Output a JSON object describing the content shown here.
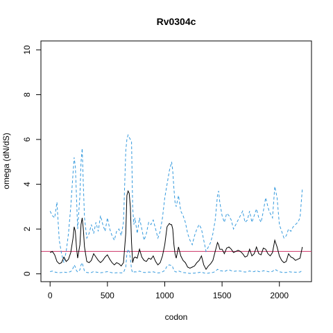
{
  "chart_data": {
    "type": "line",
    "title": "Rv0304c",
    "xlabel": "codon",
    "ylabel": "omega (dN/dS)",
    "xlim": [
      -80,
      2280
    ],
    "ylim": [
      -0.35,
      10.4
    ],
    "x_ticks": [
      0,
      500,
      1000,
      1500,
      2000
    ],
    "x_tick_labels": [
      "0",
      "500",
      "1000",
      "1500",
      "2000"
    ],
    "y_ticks": [
      0,
      2,
      4,
      6,
      8,
      10
    ],
    "y_tick_labels": [
      "0",
      "2",
      "4",
      "6",
      "8",
      "10"
    ],
    "grid": false,
    "reference_line": {
      "y": 1,
      "color": "#cc3366"
    },
    "series": [
      {
        "id": "upper",
        "color": "#3399dd",
        "dash": true,
        "x": [
          0,
          20,
          40,
          60,
          80,
          100,
          120,
          140,
          160,
          180,
          200,
          210,
          220,
          230,
          240,
          260,
          270,
          280,
          290,
          300,
          320,
          340,
          360,
          380,
          400,
          420,
          440,
          460,
          480,
          500,
          520,
          540,
          560,
          580,
          600,
          620,
          640,
          660,
          670,
          680,
          690,
          700,
          710,
          720,
          730,
          740,
          760,
          780,
          800,
          820,
          840,
          860,
          880,
          900,
          920,
          940,
          960,
          980,
          1000,
          1020,
          1040,
          1050,
          1060,
          1070,
          1080,
          1090,
          1100,
          1120,
          1140,
          1160,
          1180,
          1200,
          1220,
          1240,
          1260,
          1280,
          1300,
          1320,
          1340,
          1360,
          1380,
          1400,
          1420,
          1440,
          1460,
          1470,
          1480,
          1500,
          1520,
          1540,
          1560,
          1580,
          1600,
          1620,
          1640,
          1660,
          1680,
          1700,
          1720,
          1740,
          1760,
          1780,
          1800,
          1820,
          1840,
          1860,
          1880,
          1900,
          1910,
          1920,
          1940,
          1960,
          1980,
          2000,
          2020,
          2040,
          2060,
          2080,
          2100,
          2120,
          2140,
          2160,
          2180,
          2200
        ],
        "y": [
          2.8,
          2.6,
          2.5,
          3.2,
          1.5,
          0.9,
          0.5,
          1.0,
          1.8,
          3.0,
          4.5,
          5.2,
          4.8,
          3.5,
          2.0,
          3.5,
          5.0,
          5.6,
          4.0,
          2.5,
          1.6,
          1.8,
          2.2,
          1.8,
          2.3,
          1.9,
          2.6,
          2.2,
          1.9,
          2.5,
          2.0,
          1.7,
          1.5,
          1.9,
          2.0,
          1.7,
          2.3,
          5.5,
          6.0,
          6.2,
          6.1,
          6.0,
          5.9,
          3.0,
          2.2,
          2.5,
          1.8,
          2.5,
          2.0,
          1.5,
          1.8,
          2.3,
          2.2,
          2.4,
          2.0,
          1.6,
          1.9,
          2.5,
          3.4,
          4.0,
          4.6,
          4.8,
          5.0,
          4.6,
          3.8,
          3.2,
          3.0,
          3.5,
          2.8,
          2.6,
          2.3,
          1.8,
          1.5,
          1.3,
          1.7,
          2.0,
          2.2,
          2.0,
          1.5,
          1.0,
          1.2,
          1.4,
          1.8,
          2.4,
          3.5,
          3.7,
          3.2,
          2.6,
          2.3,
          2.7,
          2.6,
          2.4,
          2.0,
          2.2,
          2.4,
          2.6,
          2.8,
          2.3,
          2.4,
          2.8,
          2.3,
          2.6,
          2.9,
          2.5,
          2.3,
          2.8,
          3.4,
          3.0,
          2.8,
          2.7,
          2.5,
          3.9,
          3.4,
          2.2,
          1.9,
          1.6,
          1.7,
          2.0,
          1.9,
          2.1,
          2.2,
          2.3,
          2.5,
          3.8
        ]
      },
      {
        "id": "omega",
        "color": "#000000",
        "dash": false,
        "x": [
          0,
          20,
          40,
          60,
          80,
          100,
          120,
          140,
          160,
          180,
          200,
          210,
          220,
          230,
          240,
          260,
          270,
          280,
          290,
          300,
          320,
          340,
          360,
          380,
          400,
          420,
          440,
          460,
          480,
          500,
          520,
          540,
          560,
          580,
          600,
          620,
          640,
          660,
          670,
          680,
          690,
          700,
          710,
          720,
          730,
          740,
          760,
          780,
          800,
          820,
          840,
          860,
          880,
          900,
          920,
          940,
          960,
          980,
          1000,
          1020,
          1040,
          1050,
          1060,
          1070,
          1080,
          1090,
          1100,
          1120,
          1140,
          1160,
          1180,
          1200,
          1220,
          1240,
          1260,
          1280,
          1300,
          1320,
          1340,
          1360,
          1380,
          1400,
          1420,
          1440,
          1460,
          1470,
          1480,
          1500,
          1520,
          1540,
          1560,
          1580,
          1600,
          1620,
          1640,
          1660,
          1680,
          1700,
          1720,
          1740,
          1760,
          1780,
          1800,
          1820,
          1840,
          1860,
          1880,
          1900,
          1910,
          1920,
          1940,
          1960,
          1980,
          2000,
          2020,
          2040,
          2060,
          2080,
          2100,
          2120,
          2140,
          2160,
          2180,
          2200
        ],
        "y": [
          0.95,
          1.0,
          0.85,
          0.55,
          0.45,
          0.5,
          0.75,
          0.55,
          0.65,
          0.95,
          1.6,
          2.1,
          1.9,
          1.2,
          0.7,
          1.3,
          2.2,
          2.5,
          2.0,
          1.2,
          0.55,
          0.5,
          0.6,
          0.9,
          0.75,
          0.6,
          0.5,
          0.6,
          0.75,
          0.85,
          0.65,
          0.5,
          0.4,
          0.5,
          0.45,
          0.35,
          0.5,
          1.8,
          3.5,
          3.7,
          3.6,
          3.0,
          1.4,
          0.5,
          0.7,
          0.75,
          0.7,
          1.1,
          0.75,
          0.6,
          0.55,
          0.7,
          0.65,
          0.8,
          0.55,
          0.4,
          0.5,
          0.8,
          1.3,
          2.1,
          2.25,
          2.2,
          2.2,
          2.0,
          1.3,
          0.9,
          0.7,
          1.2,
          0.8,
          0.6,
          0.5,
          0.3,
          0.25,
          0.3,
          0.35,
          0.5,
          0.6,
          0.8,
          0.4,
          0.2,
          0.35,
          0.45,
          0.6,
          1.0,
          1.4,
          1.3,
          1.1,
          1.1,
          0.9,
          1.15,
          1.2,
          1.1,
          0.95,
          1.0,
          1.05,
          1.0,
          0.9,
          0.75,
          0.8,
          1.1,
          0.8,
          0.9,
          1.2,
          0.9,
          0.85,
          1.15,
          1.1,
          0.9,
          0.85,
          0.8,
          0.95,
          1.5,
          1.2,
          0.8,
          0.6,
          0.5,
          0.55,
          0.9,
          0.75,
          0.7,
          0.6,
          0.65,
          0.7,
          1.2
        ]
      },
      {
        "id": "lower",
        "color": "#3399dd",
        "dash": true,
        "x": [
          0,
          20,
          40,
          60,
          80,
          100,
          120,
          140,
          160,
          180,
          200,
          210,
          220,
          230,
          240,
          260,
          270,
          280,
          290,
          300,
          320,
          340,
          360,
          380,
          400,
          420,
          440,
          460,
          480,
          500,
          520,
          540,
          560,
          580,
          600,
          620,
          640,
          660,
          670,
          680,
          690,
          700,
          710,
          720,
          730,
          740,
          760,
          780,
          800,
          820,
          840,
          860,
          880,
          900,
          920,
          940,
          960,
          980,
          1000,
          1020,
          1040,
          1050,
          1060,
          1070,
          1080,
          1090,
          1100,
          1120,
          1140,
          1160,
          1180,
          1200,
          1220,
          1240,
          1260,
          1280,
          1300,
          1320,
          1340,
          1360,
          1380,
          1400,
          1420,
          1440,
          1460,
          1470,
          1480,
          1500,
          1520,
          1540,
          1560,
          1580,
          1600,
          1620,
          1640,
          1660,
          1680,
          1700,
          1720,
          1740,
          1760,
          1780,
          1800,
          1820,
          1840,
          1860,
          1880,
          1900,
          1910,
          1920,
          1940,
          1960,
          1980,
          2000,
          2020,
          2040,
          2060,
          2080,
          2100,
          2120,
          2140,
          2160,
          2180,
          2200
        ],
        "y": [
          0.1,
          0.12,
          0.08,
          0.06,
          0.05,
          0.06,
          0.08,
          0.06,
          0.07,
          0.1,
          0.25,
          0.4,
          0.3,
          0.15,
          0.08,
          0.18,
          0.4,
          0.5,
          0.3,
          0.12,
          0.06,
          0.05,
          0.06,
          0.1,
          0.08,
          0.06,
          0.05,
          0.06,
          0.08,
          0.1,
          0.07,
          0.05,
          0.04,
          0.05,
          0.05,
          0.04,
          0.06,
          0.3,
          0.9,
          1.1,
          1.0,
          0.7,
          0.2,
          0.05,
          0.08,
          0.09,
          0.08,
          0.12,
          0.08,
          0.06,
          0.06,
          0.08,
          0.07,
          0.09,
          0.06,
          0.04,
          0.05,
          0.09,
          0.15,
          0.35,
          0.4,
          0.38,
          0.38,
          0.3,
          0.15,
          0.1,
          0.08,
          0.13,
          0.09,
          0.06,
          0.05,
          0.03,
          0.02,
          0.03,
          0.03,
          0.05,
          0.06,
          0.08,
          0.04,
          0.02,
          0.03,
          0.05,
          0.06,
          0.1,
          0.2,
          0.18,
          0.14,
          0.13,
          0.1,
          0.15,
          0.18,
          0.14,
          0.11,
          0.12,
          0.13,
          0.12,
          0.1,
          0.08,
          0.09,
          0.13,
          0.09,
          0.1,
          0.15,
          0.1,
          0.09,
          0.14,
          0.13,
          0.1,
          0.09,
          0.09,
          0.11,
          0.2,
          0.15,
          0.09,
          0.07,
          0.06,
          0.06,
          0.1,
          0.08,
          0.08,
          0.07,
          0.07,
          0.08,
          0.15
        ]
      }
    ]
  }
}
